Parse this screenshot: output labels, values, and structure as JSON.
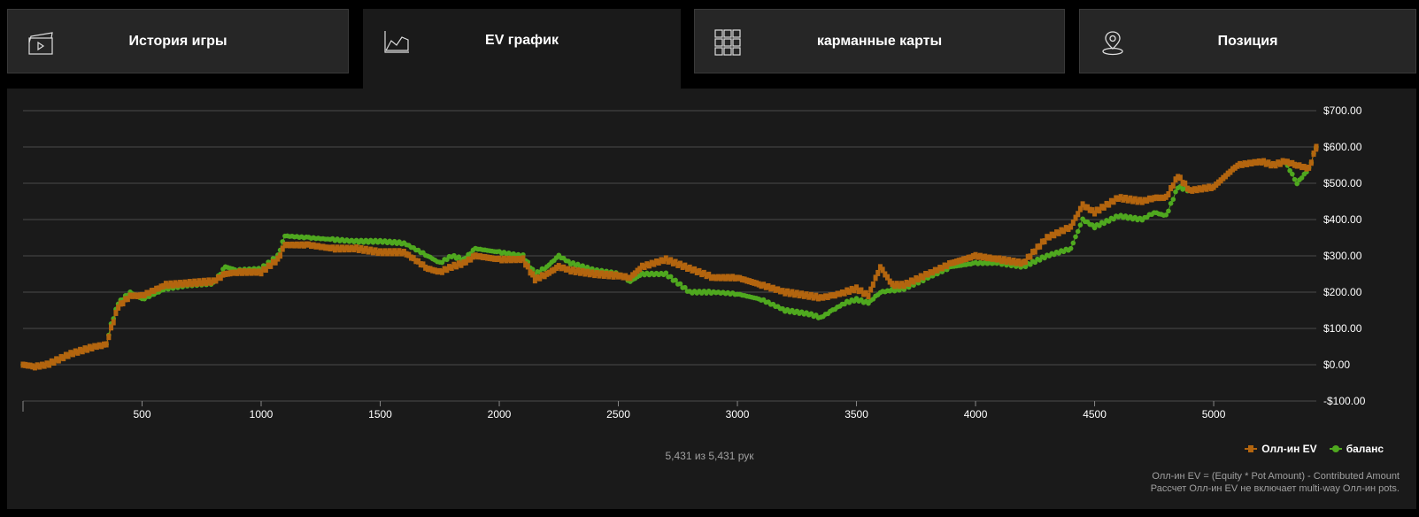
{
  "tabs": [
    {
      "label": "История игры",
      "icon": "clapperboard-icon"
    },
    {
      "label": "EV график",
      "icon": "line-chart-icon",
      "active": true
    },
    {
      "label": "карманные карты",
      "icon": "grid-icon"
    },
    {
      "label": "Позиция",
      "icon": "location-pin-icon"
    }
  ],
  "colors": {
    "allin_ev": "#b3650f",
    "balance": "#4fa81f",
    "grid": "#4a4a4a",
    "panel": "#1a1a1a"
  },
  "hands_count": "5,431 из 5,431 рук",
  "note": {
    "line1": "Олл-ин EV = (Equity * Pot Amount) - Contributed Amount",
    "line2": "Рассчет Олл-ин EV не включает multi-way Олл-ин pots."
  },
  "chart_data": {
    "type": "line",
    "xlim": [
      0,
      5431
    ],
    "ylim": [
      -100,
      700
    ],
    "x_ticks": [
      500,
      1000,
      1500,
      2000,
      2500,
      3000,
      3500,
      4000,
      4500,
      5000
    ],
    "y_ticks": [
      -100,
      0,
      100,
      200,
      300,
      400,
      500,
      600,
      700
    ],
    "y_tick_labels": [
      "-$100.00",
      "$0.00",
      "$100.00",
      "$200.00",
      "$300.00",
      "$400.00",
      "$500.00",
      "$600.00",
      "$700.00"
    ],
    "y_axis_side": "right",
    "grid": true,
    "legend_position": "bottom-right",
    "x": [
      0,
      50,
      100,
      200,
      300,
      350,
      370,
      400,
      450,
      500,
      600,
      700,
      800,
      850,
      900,
      1000,
      1070,
      1100,
      1200,
      1300,
      1400,
      1500,
      1600,
      1700,
      1750,
      1800,
      1850,
      1900,
      2000,
      2100,
      2150,
      2200,
      2250,
      2300,
      2400,
      2500,
      2550,
      2600,
      2700,
      2800,
      2900,
      3000,
      3100,
      3200,
      3300,
      3350,
      3400,
      3450,
      3500,
      3550,
      3600,
      3650,
      3700,
      3800,
      3900,
      4000,
      4100,
      4200,
      4300,
      4400,
      4450,
      4500,
      4600,
      4700,
      4750,
      4800,
      4850,
      4900,
      5000,
      5100,
      5200,
      5250,
      5300,
      5350,
      5400,
      5431
    ],
    "series": [
      {
        "name": "Олл-ин EV",
        "marker": "square",
        "values": [
          0,
          -5,
          0,
          30,
          50,
          55,
          100,
          160,
          190,
          190,
          220,
          225,
          230,
          250,
          255,
          255,
          290,
          330,
          330,
          320,
          320,
          310,
          310,
          265,
          255,
          270,
          280,
          300,
          290,
          290,
          235,
          250,
          270,
          260,
          250,
          245,
          240,
          270,
          290,
          265,
          240,
          240,
          220,
          200,
          190,
          185,
          190,
          200,
          210,
          190,
          270,
          220,
          220,
          250,
          280,
          300,
          290,
          280,
          350,
          380,
          440,
          420,
          460,
          450,
          460,
          460,
          520,
          480,
          490,
          550,
          560,
          550,
          560,
          550,
          540,
          600
        ]
      },
      {
        "name": "баланс",
        "marker": "circle",
        "values": [
          0,
          -5,
          0,
          30,
          50,
          55,
          110,
          170,
          200,
          180,
          210,
          220,
          225,
          270,
          260,
          265,
          300,
          355,
          350,
          345,
          340,
          340,
          335,
          300,
          280,
          300,
          290,
          320,
          310,
          300,
          250,
          270,
          300,
          280,
          260,
          250,
          230,
          250,
          250,
          200,
          200,
          195,
          180,
          150,
          140,
          130,
          150,
          170,
          180,
          170,
          200,
          205,
          210,
          240,
          270,
          280,
          280,
          270,
          300,
          320,
          400,
          380,
          410,
          400,
          420,
          410,
          490,
          480,
          490,
          550,
          560,
          550,
          560,
          500,
          540,
          600
        ]
      }
    ]
  }
}
